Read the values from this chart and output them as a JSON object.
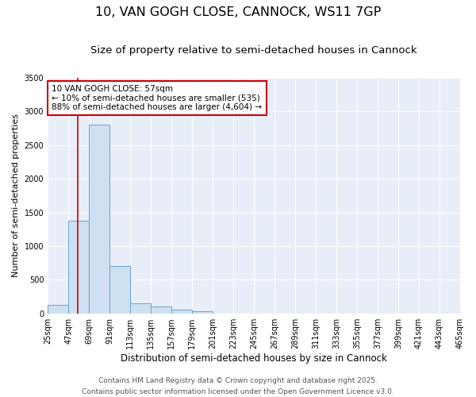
{
  "title1": "10, VAN GOGH CLOSE, CANNOCK, WS11 7GP",
  "title2": "Size of property relative to semi-detached houses in Cannock",
  "xlabel": "Distribution of semi-detached houses by size in Cannock",
  "ylabel": "Number of semi-detached properties",
  "bin_labels": [
    "25sqm",
    "47sqm",
    "69sqm",
    "91sqm",
    "113sqm",
    "135sqm",
    "157sqm",
    "179sqm",
    "201sqm",
    "223sqm",
    "245sqm",
    "267sqm",
    "289sqm",
    "311sqm",
    "333sqm",
    "355sqm",
    "377sqm",
    "399sqm",
    "421sqm",
    "443sqm",
    "465sqm"
  ],
  "bin_edges": [
    25,
    47,
    69,
    91,
    113,
    135,
    157,
    179,
    201,
    223,
    245,
    267,
    289,
    311,
    333,
    355,
    377,
    399,
    421,
    443,
    465
  ],
  "bar_heights": [
    130,
    1380,
    2800,
    700,
    150,
    100,
    50,
    30,
    0,
    0,
    0,
    0,
    0,
    0,
    0,
    0,
    0,
    0,
    0,
    0
  ],
  "bar_color": "#cfe0f3",
  "bar_edge_color": "#6aa4cd",
  "red_line_x": 57,
  "annotation_title": "10 VAN GOGH CLOSE: 57sqm",
  "annotation_line1": "← 10% of semi-detached houses are smaller (535)",
  "annotation_line2": "88% of semi-detached houses are larger (4,604) →",
  "annotation_box_color": "#cc0000",
  "ylim": [
    0,
    3500
  ],
  "yticks": [
    0,
    500,
    1000,
    1500,
    2000,
    2500,
    3000,
    3500
  ],
  "bg_color": "#e8eef8",
  "grid_color": "#ffffff",
  "footer1": "Contains HM Land Registry data © Crown copyright and database right 2025.",
  "footer2": "Contains public sector information licensed under the Open Government Licence v3.0.",
  "title1_fontsize": 11.5,
  "title2_fontsize": 9.5,
  "xlabel_fontsize": 8.5,
  "ylabel_fontsize": 8,
  "tick_fontsize": 7,
  "footer_fontsize": 6.5,
  "ann_fontsize": 7.5
}
